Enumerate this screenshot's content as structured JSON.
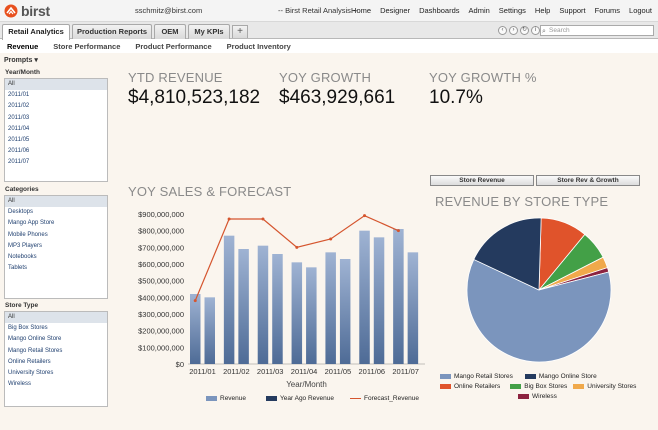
{
  "header": {
    "logo_text": "birst",
    "user_email": "sschmitz@birst.com",
    "app_title": "-- Birst Retail Analysis --",
    "nav": [
      "Home",
      "Designer",
      "Dashboards",
      "Admin",
      "Settings",
      "Help",
      "Support",
      "Forums",
      "Logout"
    ]
  },
  "tabs": [
    {
      "label": "Retail Analytics",
      "active": true
    },
    {
      "label": "Production Reports",
      "active": false
    },
    {
      "label": "OEM",
      "active": false
    },
    {
      "label": "My KPIs",
      "active": false
    }
  ],
  "add_tab_symbol": "+",
  "search": {
    "placeholder": "Search"
  },
  "subtabs": [
    "Revenue",
    "Store Performance",
    "Product Performance",
    "Product Inventory"
  ],
  "prompts": {
    "label": "Prompts",
    "year_month": {
      "label": "Year/Month",
      "items": [
        "All",
        "2011/01",
        "2011/02",
        "2011/03",
        "2011/04",
        "2011/05",
        "2011/06",
        "2011/07"
      ]
    },
    "categories": {
      "label": "Categories",
      "items": [
        "All",
        "Desktops",
        "Mango App Store",
        "Mobile Phones",
        "MP3 Players",
        "Notebooks",
        "Tablets"
      ]
    },
    "store_type": {
      "label": "Store Type",
      "items": [
        "All",
        "Big Box Stores",
        "Mango Online Store",
        "Mango Retail Stores",
        "Online Retailers",
        "University Stores",
        "Wireless"
      ]
    }
  },
  "kpis": [
    {
      "label": "YTD REVENUE",
      "value": "$4,810,523,182"
    },
    {
      "label": "YOY GROWTH",
      "value": "$463,929,661"
    },
    {
      "label": "YOY GROWTH %",
      "value": "10.7%"
    }
  ],
  "colors": {
    "revenue": "#7b95bd",
    "year_ago": "#243a5e",
    "forecast": "#d5552e",
    "accent": "#e8501e"
  },
  "toggle_buttons": [
    "Store Revenue",
    "Store Rev & Growth"
  ],
  "chart_data": [
    {
      "type": "bar",
      "title": "YOY SALES & FORECAST",
      "xlabel": "Year/Month",
      "ylabel": "",
      "categories": [
        "2011/01",
        "2011/02",
        "2011/03",
        "2011/04",
        "2011/05",
        "2011/06",
        "2011/07"
      ],
      "x_tick_labels": [
        "2011/01",
        "2011/02",
        "2011/03",
        "2011/04",
        "2011/05",
        "2011/06",
        "2011/07"
      ],
      "y_tick_labels": [
        "$0",
        "$100,000,000",
        "$200,000,000",
        "$300,000,000",
        "$400,000,000",
        "$500,000,000",
        "$600,000,000",
        "$700,000,000",
        "$800,000,000",
        "$900,000,000"
      ],
      "ylim": [
        0,
        900000000
      ],
      "series": [
        {
          "name": "Revenue",
          "kind": "bar",
          "color": "#7b95bd",
          "values": [
            420000000,
            770000000,
            710000000,
            610000000,
            670000000,
            800000000,
            810000000
          ]
        },
        {
          "name": "Year Ago Revenue",
          "kind": "bar",
          "color": "#7b95bd",
          "values": [
            400000000,
            690000000,
            660000000,
            580000000,
            630000000,
            760000000,
            670000000
          ]
        },
        {
          "name": "Forecast_Revenue",
          "kind": "line",
          "color": "#d5552e",
          "values": [
            380000000,
            870000000,
            870000000,
            700000000,
            750000000,
            890000000,
            800000000
          ]
        }
      ]
    },
    {
      "type": "pie",
      "title": "REVENUE BY STORE TYPE",
      "slices": [
        {
          "name": "Mango Retail Stores",
          "value": 61,
          "color": "#7b95bd"
        },
        {
          "name": "Mango Online Store",
          "value": 18.5,
          "color": "#243a5e"
        },
        {
          "name": "Online Retailers",
          "value": 10.5,
          "color": "#e0532b"
        },
        {
          "name": "Big Box Stores",
          "value": 6.5,
          "color": "#43a047"
        },
        {
          "name": "University Stores",
          "value": 2.5,
          "color": "#f0a94b"
        },
        {
          "name": "Wireless",
          "value": 1,
          "color": "#8c2340"
        }
      ]
    }
  ]
}
